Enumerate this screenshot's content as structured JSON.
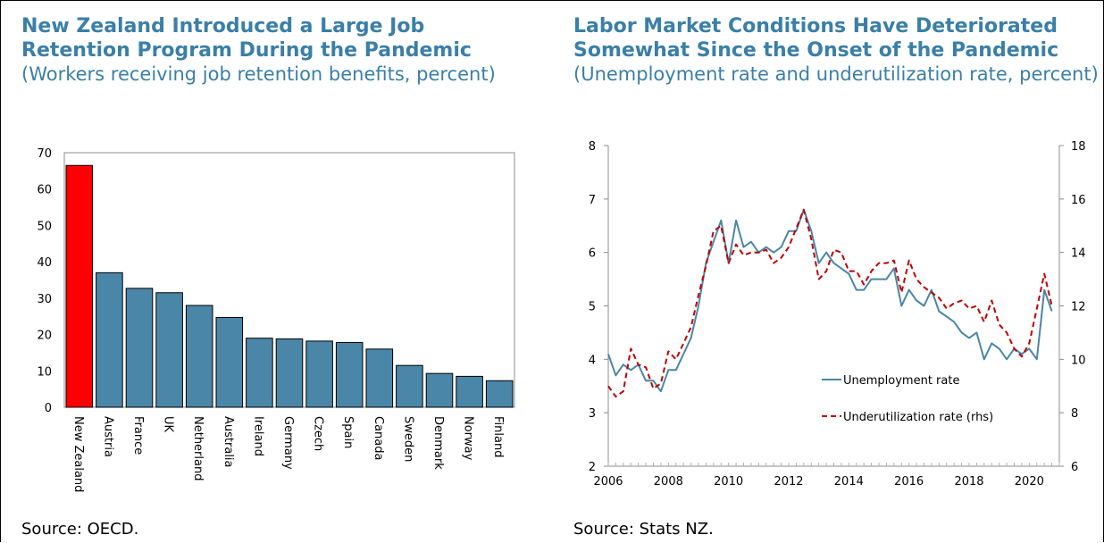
{
  "left": {
    "title": "New Zealand Introduced a Large Job Retention Program During the Pandemic",
    "subtitle": "(Workers receiving job retention benefits, percent)",
    "source": "Source: OECD."
  },
  "right": {
    "title": "Labor Market Conditions Have Deteriorated Somewhat Since the Onset of the Pandemic",
    "subtitle": "(Unemployment rate and underutilization rate, percent)",
    "source": "Source: Stats NZ."
  },
  "colors": {
    "title": "#3a7fa8",
    "bar": "#4a86a8",
    "highlight": "#ff0000",
    "unemployment": "#4a86a8",
    "underutilization": "#c00000"
  },
  "chart_data": [
    {
      "type": "bar",
      "title": "New Zealand Introduced a Large Job Retention Program During the Pandemic",
      "subtitle": "(Workers receiving job retention benefits, percent)",
      "categories": [
        "New Zealand",
        "Austria",
        "France",
        "UK",
        "Netherland",
        "Australia",
        "Ireland",
        "Germany",
        "Czech",
        "Spain",
        "Canada",
        "Sweden",
        "Denmark",
        "Norway",
        "Finland"
      ],
      "values": [
        66.5,
        37,
        32.7,
        31.5,
        28,
        24.7,
        19,
        18.8,
        18.2,
        17.8,
        16,
        11.5,
        9.3,
        8.5,
        7.3
      ],
      "highlight": "New Zealand",
      "yticks": [
        0,
        10,
        20,
        30,
        40,
        50,
        60,
        70
      ],
      "ylim": [
        0,
        70
      ],
      "grid": false,
      "source": "Source: OECD."
    },
    {
      "type": "line",
      "title": "Labor Market Conditions Have Deteriorated Somewhat Since the Onset of the Pandemic",
      "subtitle": "(Unemployment rate and underutilization rate, percent)",
      "x_start": 2006,
      "x_step": 0.25,
      "xticks": [
        2006,
        2008,
        2010,
        2012,
        2014,
        2016,
        2018,
        2020
      ],
      "xlim": [
        2006,
        2021
      ],
      "ylim": [
        2,
        8
      ],
      "yticks": [
        2,
        3,
        4,
        5,
        6,
        7,
        8
      ],
      "y2lim": [
        6,
        18
      ],
      "y2ticks": [
        6,
        8,
        10,
        12,
        14,
        16,
        18
      ],
      "legend_position": "bottom-right",
      "series": [
        {
          "name": "Unemployment rate",
          "axis": "left",
          "style": "solid",
          "values": [
            4.1,
            3.7,
            3.9,
            3.8,
            3.9,
            3.6,
            3.6,
            3.4,
            3.8,
            3.8,
            4.1,
            4.4,
            5.0,
            5.8,
            6.2,
            6.6,
            5.8,
            6.6,
            6.1,
            6.2,
            6.0,
            6.1,
            6.0,
            6.1,
            6.4,
            6.4,
            6.8,
            6.4,
            5.8,
            6.0,
            5.8,
            5.7,
            5.6,
            5.3,
            5.3,
            5.5,
            5.5,
            5.5,
            5.7,
            5.0,
            5.3,
            5.1,
            5.0,
            5.3,
            4.9,
            4.8,
            4.7,
            4.5,
            4.4,
            4.5,
            4.0,
            4.3,
            4.2,
            4.0,
            4.2,
            4.1,
            4.2,
            4.0,
            5.3,
            4.9
          ]
        },
        {
          "name": "Underutilization rate (rhs)",
          "axis": "right",
          "style": "dashed",
          "values": [
            9.0,
            8.6,
            8.8,
            10.4,
            9.8,
            9.7,
            8.9,
            9.1,
            10.3,
            10.0,
            10.6,
            11.2,
            12.4,
            13.5,
            14.8,
            15.0,
            13.6,
            14.3,
            13.9,
            14.0,
            14.0,
            14.1,
            13.6,
            13.8,
            14.2,
            14.9,
            15.6,
            14.5,
            13.0,
            13.3,
            14.1,
            14.0,
            13.3,
            13.3,
            12.8,
            13.3,
            13.6,
            13.6,
            13.7,
            12.5,
            13.7,
            13.0,
            12.7,
            12.5,
            12.3,
            11.9,
            12.1,
            12.2,
            11.9,
            12.0,
            11.4,
            12.2,
            11.3,
            11.0,
            10.4,
            10.1,
            10.6,
            11.9,
            13.2,
            12.0
          ]
        }
      ],
      "source": "Source: Stats NZ."
    }
  ]
}
